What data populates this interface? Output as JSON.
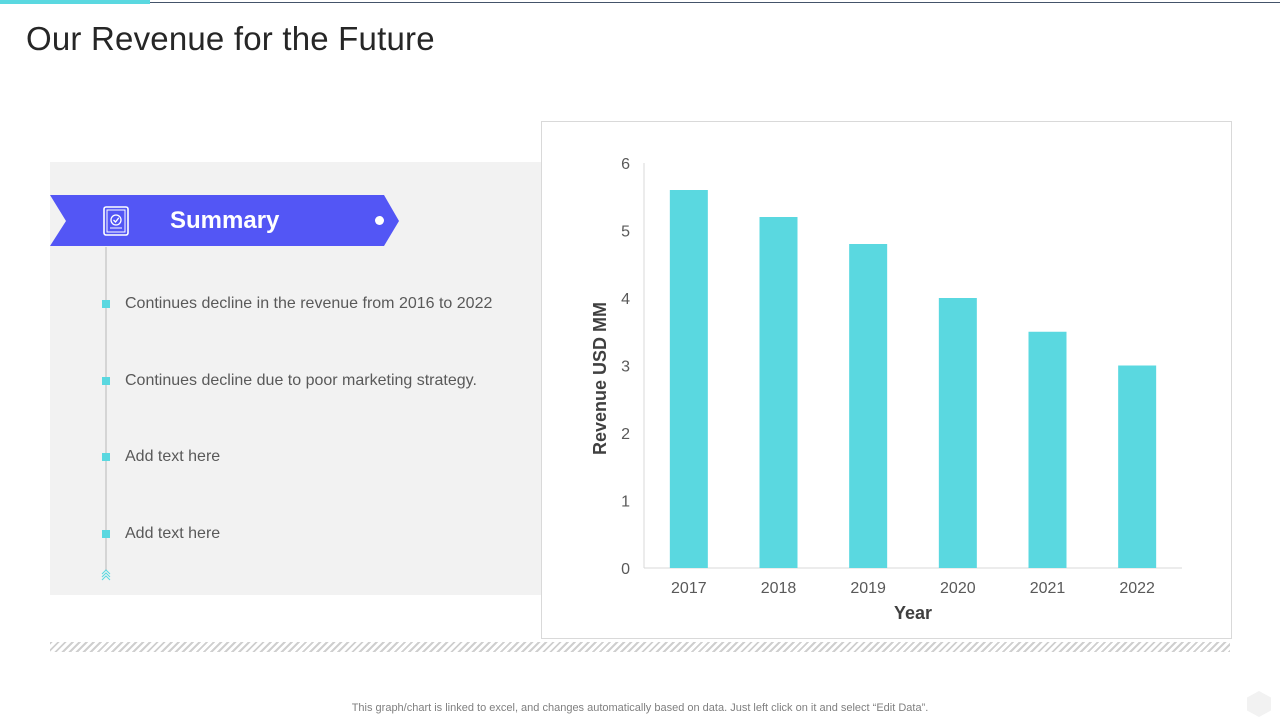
{
  "slide": {
    "title": "Our Revenue for the Future",
    "footer_note": "This graph/chart is linked to excel, and changes automatically based on data. Just left click on it and select “Edit Data”."
  },
  "summary": {
    "title": "Summary",
    "icon": "document-check-icon",
    "items": [
      "Continues decline in the revenue from 2016 to 2022",
      "Continues decline due to poor marketing strategy.",
      "Add text here",
      "Add text here"
    ]
  },
  "colors": {
    "accent": "#5ad8e0",
    "banner": "#5356f5",
    "panel": "#f2f2f2"
  },
  "chart_data": {
    "type": "bar",
    "categories": [
      "2017",
      "2018",
      "2019",
      "2020",
      "2021",
      "2022"
    ],
    "values": [
      5.6,
      5.2,
      4.8,
      4.0,
      3.5,
      3.0
    ],
    "title": "",
    "xlabel": "Year",
    "ylabel": "Revenue USD MM",
    "ylim": [
      0,
      6
    ],
    "yticks": [
      0,
      1,
      2,
      3,
      4,
      5,
      6
    ],
    "grid": false,
    "legend": "none",
    "bar_color": "#5ad8e0"
  }
}
